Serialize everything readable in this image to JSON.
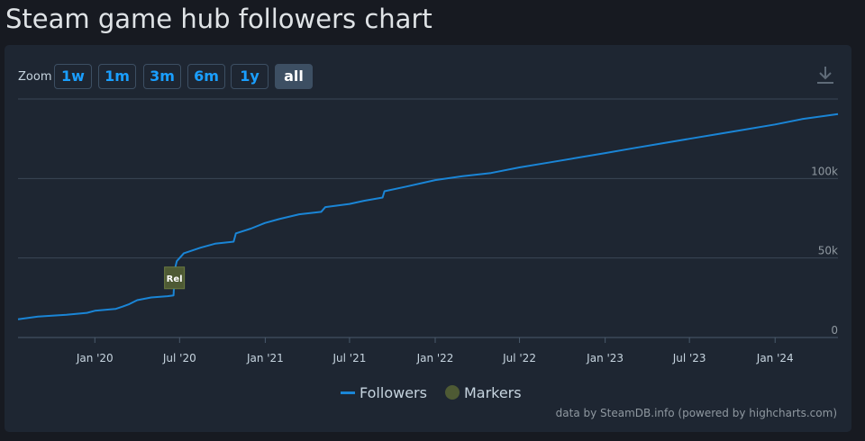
{
  "page": {
    "title": "Steam game hub followers chart"
  },
  "toolbar": {
    "zoom_label": "Zoom",
    "zoom_buttons": [
      {
        "label": "1w",
        "active": false
      },
      {
        "label": "1m",
        "active": false
      },
      {
        "label": "3m",
        "active": false
      },
      {
        "label": "6m",
        "active": false
      },
      {
        "label": "1y",
        "active": false
      },
      {
        "label": "all",
        "active": true
      }
    ],
    "download_icon": "download-icon"
  },
  "legend": {
    "followers_label": "Followers",
    "markers_label": "Markers"
  },
  "credits": "data by SteamDB.info (powered by highcharts.com)",
  "colors": {
    "background": "#171a21",
    "card": "#1e2632",
    "series": "#1a85d6",
    "marker": "#4e5a34",
    "grid": "#3b4656",
    "accent": "#1a9fff"
  },
  "chart_data": {
    "type": "line",
    "ylim": [
      0,
      150000
    ],
    "y_ticks": [
      {
        "value": 0,
        "label": "0"
      },
      {
        "value": 50000,
        "label": "50k"
      },
      {
        "value": 100000,
        "label": "100k"
      }
    ],
    "x_ticks": [
      {
        "date": "2020-01-01",
        "label": "Jan '20"
      },
      {
        "date": "2020-07-01",
        "label": "Jul '20"
      },
      {
        "date": "2021-01-01",
        "label": "Jan '21"
      },
      {
        "date": "2021-07-01",
        "label": "Jul '21"
      },
      {
        "date": "2022-01-01",
        "label": "Jan '22"
      },
      {
        "date": "2022-07-01",
        "label": "Jul '22"
      },
      {
        "date": "2023-01-01",
        "label": "Jan '23"
      },
      {
        "date": "2023-07-01",
        "label": "Jul '23"
      },
      {
        "date": "2024-01-01",
        "label": "Jan '24"
      }
    ],
    "xlim": [
      "2019-07-20",
      "2024-05-15"
    ],
    "series": [
      {
        "name": "Followers",
        "points": [
          [
            "2019-07-20",
            11500
          ],
          [
            "2019-09-01",
            13200
          ],
          [
            "2019-11-01",
            14300
          ],
          [
            "2019-12-15",
            15500
          ],
          [
            "2020-01-01",
            16800
          ],
          [
            "2020-02-15",
            18000
          ],
          [
            "2020-03-01",
            19500
          ],
          [
            "2020-03-15",
            21000
          ],
          [
            "2020-04-01",
            23500
          ],
          [
            "2020-05-01",
            25200
          ],
          [
            "2020-06-05",
            26000
          ],
          [
            "2020-06-18",
            26500
          ],
          [
            "2020-06-21",
            43000
          ],
          [
            "2020-06-25",
            48000
          ],
          [
            "2020-07-10",
            53000
          ],
          [
            "2020-08-15",
            56500
          ],
          [
            "2020-09-15",
            59000
          ],
          [
            "2020-10-25",
            60300
          ],
          [
            "2020-10-30",
            65500
          ],
          [
            "2020-12-01",
            68500
          ],
          [
            "2020-12-31",
            72000
          ],
          [
            "2021-01-31",
            74500
          ],
          [
            "2021-03-15",
            77500
          ],
          [
            "2021-05-01",
            79000
          ],
          [
            "2021-05-10",
            82000
          ],
          [
            "2021-07-01",
            84000
          ],
          [
            "2021-08-01",
            86000
          ],
          [
            "2021-09-10",
            88000
          ],
          [
            "2021-09-14",
            92000
          ],
          [
            "2021-11-01",
            95000
          ],
          [
            "2022-01-01",
            99000
          ],
          [
            "2022-03-01",
            101500
          ],
          [
            "2022-05-01",
            103500
          ],
          [
            "2022-07-01",
            107000
          ],
          [
            "2022-09-01",
            110000
          ],
          [
            "2022-11-01",
            113000
          ],
          [
            "2023-01-01",
            116000
          ],
          [
            "2023-03-01",
            119000
          ],
          [
            "2023-05-01",
            122000
          ],
          [
            "2023-07-01",
            125000
          ],
          [
            "2023-09-01",
            128000
          ],
          [
            "2023-11-01",
            131000
          ],
          [
            "2024-01-01",
            134000
          ],
          [
            "2024-03-01",
            137500
          ],
          [
            "2024-05-15",
            140500
          ]
        ]
      }
    ],
    "markers": [
      {
        "date": "2020-06-20",
        "label": "Rel",
        "y": 37500
      }
    ]
  }
}
